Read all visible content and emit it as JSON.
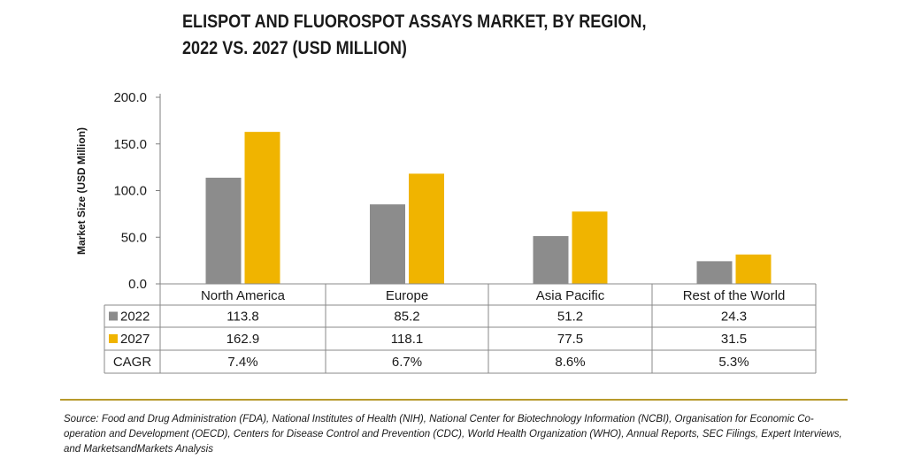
{
  "title_line1": "ELISPOT AND FLUOROSPOT ASSAYS MARKET, BY REGION,",
  "title_line2": "2022 VS. 2027 (USD MILLION)",
  "source": "Source: Food and Drug Administration (FDA), National Institutes of Health (NIH), National Center for Biotechnology Information (NCBI), Organisation for Economic Co-operation and Development (OECD), Centers for Disease Control and Prevention (CDC), World Health Organization (WHO), Annual Reports, SEC Filings, Expert Interviews, and MarketsandMarkets Analysis",
  "colors": {
    "series_2022": "#8c8c8c",
    "series_2027": "#f0b400",
    "divider": "#b89a2c"
  },
  "chart_data": {
    "type": "bar",
    "title": "ELISPOT AND FLUOROSPOT ASSAYS MARKET, BY REGION, 2022 VS. 2027 (USD MILLION)",
    "xlabel": "",
    "ylabel": "Market Size (USD Million)",
    "ylim": [
      0,
      200
    ],
    "yticks": [
      "200.0",
      "150.0",
      "100.0",
      "50.0",
      "0.0"
    ],
    "ytick_values": [
      200,
      150,
      100,
      50,
      0
    ],
    "grid": false,
    "categories": [
      "North America",
      "Europe",
      "Asia Pacific",
      "Rest of the World"
    ],
    "series": [
      {
        "name": "2022",
        "values": [
          113.8,
          85.2,
          51.2,
          24.3
        ],
        "labels": [
          "113.8",
          "85.2",
          "51.2",
          "24.3"
        ]
      },
      {
        "name": "2027",
        "values": [
          162.9,
          118.1,
          77.5,
          31.5
        ],
        "labels": [
          "162.9",
          "118.1",
          "77.5",
          "31.5"
        ]
      }
    ],
    "table_rows": [
      {
        "label": "CAGR",
        "values": [
          "7.4%",
          "6.7%",
          "8.6%",
          "5.3%"
        ]
      }
    ]
  }
}
